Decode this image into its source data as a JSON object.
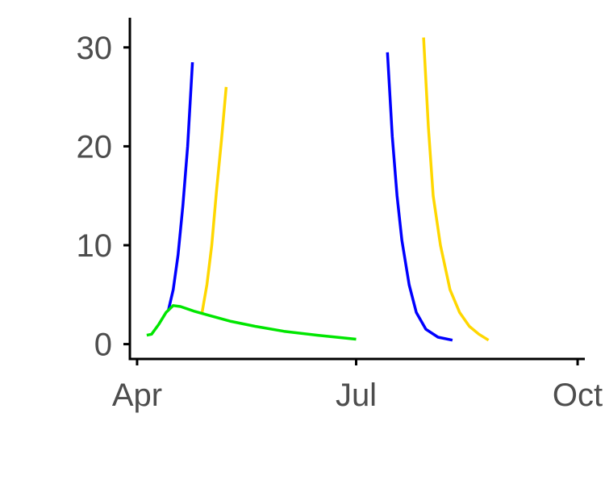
{
  "chart_data": {
    "type": "line",
    "title": "",
    "xlabel": "",
    "ylabel": "",
    "x_axis": {
      "type": "date",
      "range": [
        "2023-03-29",
        "2023-10-04"
      ],
      "ticks": [
        {
          "value": "2023-04-01",
          "label": "Apr"
        },
        {
          "value": "2023-07-01",
          "label": "Jul"
        },
        {
          "value": "2023-10-01",
          "label": "Oct"
        }
      ]
    },
    "y_axis": {
      "range": [
        -1.5,
        33
      ],
      "ticks": [
        {
          "value": 0,
          "label": "0"
        },
        {
          "value": 10,
          "label": "10"
        },
        {
          "value": 20,
          "label": "20"
        },
        {
          "value": 30,
          "label": "30"
        }
      ]
    },
    "grid": false,
    "legend": "none",
    "series": [
      {
        "color": "#0000ff",
        "segments": [
          [
            [
              "2023-04-14",
              3.4
            ],
            [
              "2023-04-16",
              5.5
            ],
            [
              "2023-04-18",
              9.0
            ],
            [
              "2023-04-20",
              14.0
            ],
            [
              "2023-04-22",
              20.0
            ],
            [
              "2023-04-24",
              28.5
            ]
          ],
          [
            [
              "2023-07-14",
              29.5
            ],
            [
              "2023-07-16",
              21.0
            ],
            [
              "2023-07-18",
              15.0
            ],
            [
              "2023-07-20",
              10.5
            ],
            [
              "2023-07-23",
              6.0
            ],
            [
              "2023-07-26",
              3.2
            ],
            [
              "2023-07-30",
              1.5
            ],
            [
              "2023-08-04",
              0.7
            ],
            [
              "2023-08-10",
              0.4
            ]
          ]
        ]
      },
      {
        "color": "#ffd700",
        "segments": [
          [
            [
              "2023-04-28",
              3.2
            ],
            [
              "2023-04-30",
              6.0
            ],
            [
              "2023-05-02",
              10.0
            ],
            [
              "2023-05-04",
              15.5
            ],
            [
              "2023-05-06",
              20.5
            ],
            [
              "2023-05-08",
              26.0
            ]
          ],
          [
            [
              "2023-07-29",
              31.0
            ],
            [
              "2023-07-31",
              22.0
            ],
            [
              "2023-08-02",
              15.0
            ],
            [
              "2023-08-05",
              10.0
            ],
            [
              "2023-08-09",
              5.5
            ],
            [
              "2023-08-13",
              3.2
            ],
            [
              "2023-08-17",
              1.8
            ],
            [
              "2023-08-21",
              1.0
            ],
            [
              "2023-08-25",
              0.4
            ]
          ]
        ]
      },
      {
        "color": "#00e600",
        "segments": [
          [
            [
              "2023-04-05",
              0.9
            ],
            [
              "2023-04-07",
              1.0
            ],
            [
              "2023-04-10",
              2.0
            ],
            [
              "2023-04-13",
              3.2
            ],
            [
              "2023-04-16",
              3.9
            ],
            [
              "2023-04-19",
              3.8
            ],
            [
              "2023-04-25",
              3.3
            ],
            [
              "2023-05-01",
              2.9
            ],
            [
              "2023-05-10",
              2.3
            ],
            [
              "2023-05-20",
              1.8
            ],
            [
              "2023-06-01",
              1.3
            ],
            [
              "2023-06-15",
              0.9
            ],
            [
              "2023-07-01",
              0.5
            ]
          ]
        ]
      }
    ]
  }
}
